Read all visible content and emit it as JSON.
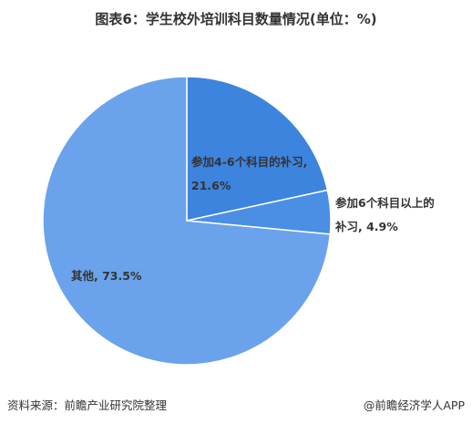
{
  "chart_data": {
    "type": "pie",
    "title": "图表6：学生校外培训科目数量情况(单位：%)",
    "values": [
      21.6,
      4.9,
      73.5
    ],
    "value_labels": [
      "参加4-6个科目的补习, 21.6%",
      "参加6个科目以上的补习, 4.9%",
      "其他, 73.5%"
    ],
    "colors": [
      "#3d84df",
      "#4a8fe4",
      "#6aa3ec"
    ],
    "source": "资料来源：前瞻产业研究院整理",
    "credit": "@前瞻经济学人APP"
  }
}
